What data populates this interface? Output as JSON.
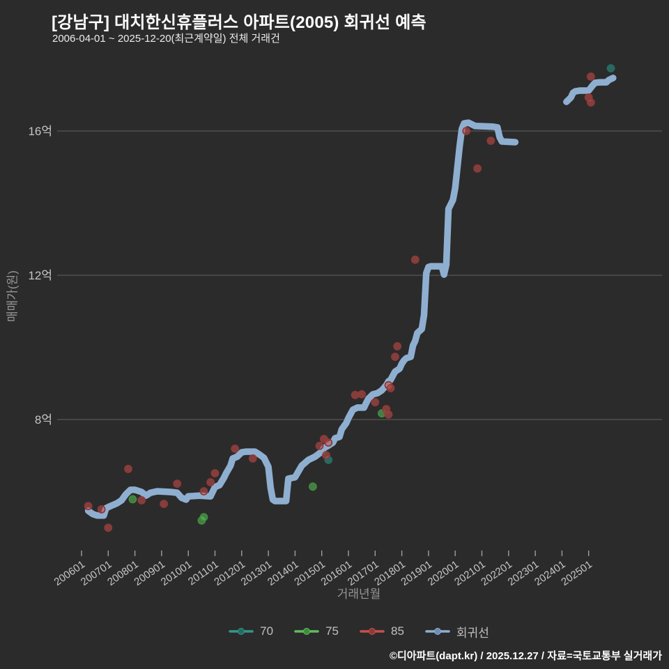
{
  "header": {
    "title": "[강남구] 대치한신휴플러스 아파트(2005) 회귀선 예측",
    "subtitle": "2006-04-01 ~ 2025-12-20(최근계약일) 전체 거래건"
  },
  "footer": {
    "credit": "©디아파트(dapt.kr) / 2025.12.27 / 자료=국토교통부 실거래가"
  },
  "colors": {
    "background": "#2b2b2b",
    "title": "#ffffff",
    "subtitle": "#ededed",
    "grid": "#575757",
    "tick": "#9e9e9e",
    "tick_label": "#c6c6c6",
    "axis_title": "#969696",
    "legend_text": "#c0c0c0",
    "footer_text": "#ffffff",
    "regression_line": "#8fafd1",
    "series70": "#35978a",
    "series75": "#63bb5f",
    "series85": "#c9504c"
  },
  "chart_data": {
    "type": "line",
    "title": "[강남구] 대치한신휴플러스 아파트(2005) 회귀선 예측",
    "subtitle": "2006-04-01 ~ 2025-12-20(최근계약일) 전체 거래건",
    "xlabel": "거래년월",
    "ylabel": "매매가(원)",
    "unit": "억원",
    "grid": "horizontal",
    "legend_position": "bottom-center",
    "x_tick_labels": [
      "200601",
      "200701",
      "200801",
      "200901",
      "201001",
      "201101",
      "201201",
      "201301",
      "201401",
      "201501",
      "201601",
      "201701",
      "201801",
      "201901",
      "202001",
      "202101",
      "202201",
      "202301",
      "202401",
      "202501"
    ],
    "y_ticks": [
      {
        "label": "8억",
        "value": 8
      },
      {
        "label": "12억",
        "value": 12
      },
      {
        "label": "16억",
        "value": 16
      }
    ],
    "ylim_eok": [
      4.4,
      17.9
    ],
    "xlim_yyyymm": [
      "200511",
      "202710"
    ],
    "series": [
      {
        "name": "70",
        "type": "scatter",
        "color": "#35978a",
        "edge": "#1f6e63",
        "points": [
          [
            "2015-04",
            6.88
          ],
          [
            "2025-11",
            17.74
          ]
        ]
      },
      {
        "name": "75",
        "type": "scatter",
        "color": "#63bb5f",
        "edge": "#3c8f3a",
        "points": [
          [
            "2007-12",
            5.79
          ],
          [
            "2010-07",
            5.2
          ],
          [
            "2010-08",
            5.29
          ],
          [
            "2014-09",
            6.14
          ],
          [
            "2017-04",
            8.17
          ]
        ]
      },
      {
        "name": "85",
        "type": "scatter",
        "color": "#c9504c",
        "edge": "#8e3a38",
        "points": [
          [
            "2006-04",
            5.6
          ],
          [
            "2006-10",
            5.51
          ],
          [
            "2007-01",
            5.0
          ],
          [
            "2007-10",
            6.63
          ],
          [
            "2008-04",
            5.76
          ],
          [
            "2009-02",
            5.66
          ],
          [
            "2009-08",
            6.22
          ],
          [
            "2010-08",
            6.01
          ],
          [
            "2010-11",
            6.26
          ],
          [
            "2011-01",
            6.51
          ],
          [
            "2011-10",
            7.19
          ],
          [
            "2012-06",
            6.92
          ],
          [
            "2014-12",
            7.27
          ],
          [
            "2015-02",
            7.46
          ],
          [
            "2015-03",
            7.01
          ],
          [
            "2015-04",
            7.36
          ],
          [
            "2016-04",
            8.68
          ],
          [
            "2016-07",
            8.7
          ],
          [
            "2017-01",
            8.48
          ],
          [
            "2017-06",
            8.29
          ],
          [
            "2017-07",
            8.14
          ],
          [
            "2017-07",
            8.95
          ],
          [
            "2017-08",
            8.87
          ],
          [
            "2017-10",
            9.74
          ],
          [
            "2017-11",
            10.03
          ],
          [
            "2018-07",
            12.43
          ],
          [
            "2020-06",
            16.0
          ],
          [
            "2020-11",
            14.96
          ],
          [
            "2021-05",
            15.73
          ],
          [
            "2025-01",
            16.93
          ],
          [
            "2025-02",
            16.79
          ],
          [
            "2025-02",
            17.51
          ]
        ]
      },
      {
        "name": "회귀선",
        "type": "line",
        "color": "#8fafd1",
        "edge": "#6d8fb3",
        "segments": [
          [
            [
              "2006-04",
              5.47
            ],
            [
              "2006-06",
              5.38
            ],
            [
              "2006-08",
              5.34
            ],
            [
              "2006-11",
              5.34
            ],
            [
              "2006-12",
              5.54
            ],
            [
              "2007-02",
              5.6
            ],
            [
              "2007-05",
              5.68
            ],
            [
              "2007-07",
              5.76
            ],
            [
              "2007-09",
              5.93
            ],
            [
              "2007-11",
              6.05
            ],
            [
              "2008-01",
              6.05
            ],
            [
              "2008-04",
              5.99
            ],
            [
              "2008-06",
              5.89
            ],
            [
              "2008-08",
              5.97
            ],
            [
              "2008-11",
              6.01
            ],
            [
              "2009-05",
              5.99
            ],
            [
              "2009-08",
              5.97
            ],
            [
              "2009-10",
              5.83
            ],
            [
              "2009-12",
              5.78
            ],
            [
              "2010-01",
              5.87
            ],
            [
              "2010-06",
              5.89
            ],
            [
              "2010-11",
              5.87
            ],
            [
              "2011-01",
              6.13
            ],
            [
              "2011-03",
              6.18
            ],
            [
              "2011-05",
              6.38
            ],
            [
              "2011-06",
              6.51
            ],
            [
              "2011-08",
              6.72
            ],
            [
              "2011-09",
              6.92
            ],
            [
              "2011-11",
              6.97
            ],
            [
              "2012-01",
              7.09
            ],
            [
              "2012-03",
              7.11
            ],
            [
              "2012-07",
              7.11
            ],
            [
              "2012-09",
              7.03
            ],
            [
              "2012-11",
              6.94
            ],
            [
              "2013-01",
              6.69
            ],
            [
              "2013-02",
              6.11
            ],
            [
              "2013-03",
              5.78
            ],
            [
              "2013-04",
              5.74
            ],
            [
              "2013-09",
              5.74
            ],
            [
              "2013-10",
              6.36
            ],
            [
              "2014-01",
              6.4
            ],
            [
              "2014-04",
              6.72
            ],
            [
              "2014-07",
              6.88
            ],
            [
              "2014-10",
              6.97
            ],
            [
              "2015-01",
              7.11
            ],
            [
              "2015-02",
              7.21
            ],
            [
              "2015-04",
              7.28
            ],
            [
              "2015-06",
              7.36
            ],
            [
              "2015-07",
              7.48
            ],
            [
              "2015-09",
              7.52
            ],
            [
              "2015-10",
              7.73
            ],
            [
              "2015-12",
              7.9
            ],
            [
              "2016-01",
              8.04
            ],
            [
              "2016-03",
              8.27
            ],
            [
              "2016-05",
              8.33
            ],
            [
              "2016-08",
              8.33
            ],
            [
              "2016-09",
              8.46
            ],
            [
              "2016-10",
              8.58
            ],
            [
              "2016-12",
              8.7
            ],
            [
              "2017-02",
              8.73
            ],
            [
              "2017-04",
              8.81
            ],
            [
              "2017-06",
              8.95
            ],
            [
              "2017-07",
              9.06
            ],
            [
              "2017-08",
              9.1
            ],
            [
              "2017-09",
              9.22
            ],
            [
              "2017-10",
              9.33
            ],
            [
              "2017-12",
              9.41
            ],
            [
              "2018-01",
              9.55
            ],
            [
              "2018-02",
              9.64
            ],
            [
              "2018-03",
              9.7
            ],
            [
              "2018-05",
              9.74
            ],
            [
              "2018-06",
              10.05
            ],
            [
              "2018-07",
              10.18
            ],
            [
              "2018-08",
              10.4
            ],
            [
              "2018-10",
              10.51
            ],
            [
              "2018-11",
              10.9
            ],
            [
              "2018-12",
              12.06
            ],
            [
              "2019-01",
              12.23
            ],
            [
              "2019-02",
              12.25
            ],
            [
              "2019-07",
              12.25
            ],
            [
              "2019-08",
              12.02
            ],
            [
              "2019-09",
              12.29
            ],
            [
              "2019-10",
              13.84
            ],
            [
              "2019-12",
              14.09
            ],
            [
              "2020-01",
              14.42
            ],
            [
              "2020-02",
              15.0
            ],
            [
              "2020-03",
              15.58
            ],
            [
              "2020-04",
              16.06
            ],
            [
              "2020-05",
              16.21
            ],
            [
              "2020-07",
              16.23
            ],
            [
              "2020-10",
              16.14
            ],
            [
              "2021-06",
              16.12
            ],
            [
              "2021-08",
              16.1
            ],
            [
              "2021-09",
              15.83
            ],
            [
              "2021-10",
              15.71
            ],
            [
              "2022-04",
              15.69
            ]
          ],
          [
            [
              "2024-03",
              16.81
            ],
            [
              "2024-05",
              16.93
            ],
            [
              "2024-06",
              17.06
            ],
            [
              "2024-07",
              17.1
            ],
            [
              "2024-09",
              17.12
            ],
            [
              "2025-01",
              17.12
            ],
            [
              "2025-02",
              17.2
            ],
            [
              "2025-03",
              17.28
            ],
            [
              "2025-04",
              17.34
            ],
            [
              "2025-06",
              17.35
            ],
            [
              "2025-09",
              17.35
            ],
            [
              "2025-10",
              17.41
            ],
            [
              "2025-12",
              17.47
            ]
          ]
        ]
      }
    ]
  }
}
